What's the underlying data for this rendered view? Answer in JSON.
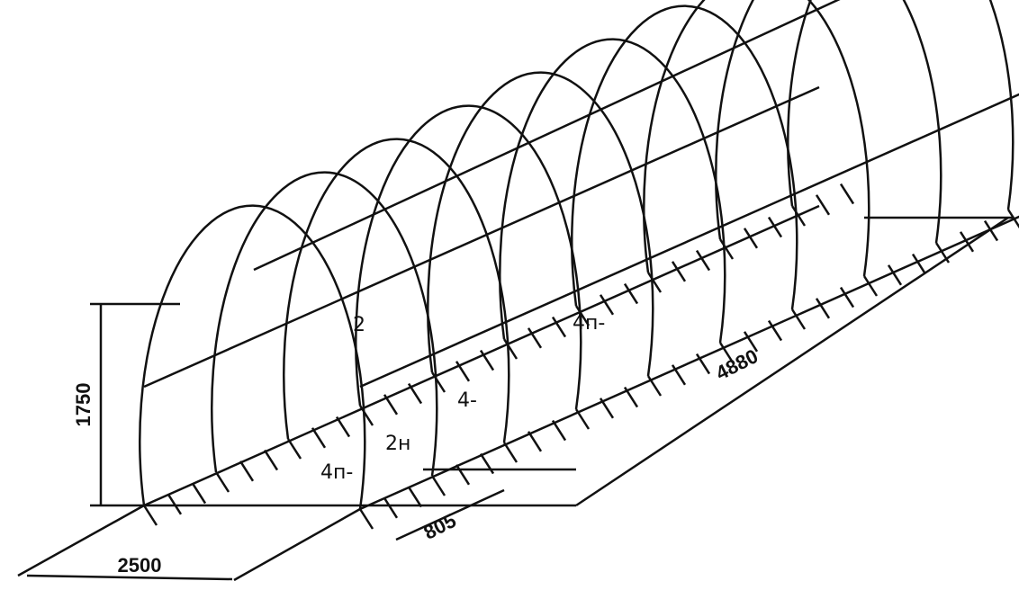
{
  "dimensions": {
    "height": "1750",
    "width": "2500",
    "length": "4880",
    "spacing": "805"
  },
  "labels": [
    "2",
    "2н",
    "4п-",
    "4п-",
    "4-"
  ]
}
